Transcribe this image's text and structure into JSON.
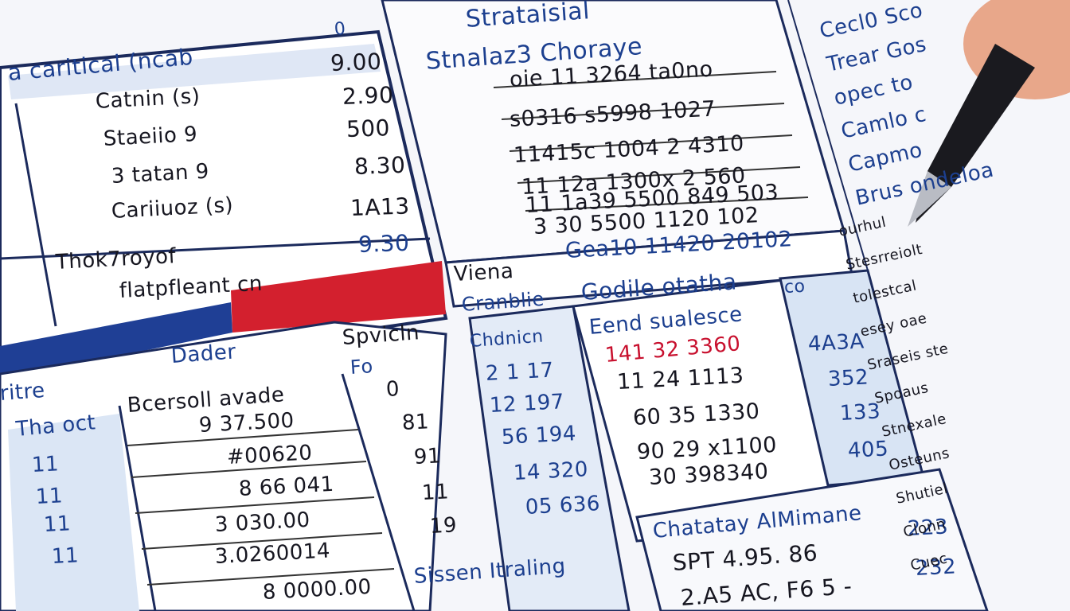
{
  "top_left": {
    "title": "a caritical (ncab",
    "note": "0",
    "labels": [
      "Catnin (s)",
      "Staeiio 9",
      "3 tatan 9",
      "Cariiuoz (s)",
      "Thok7royof",
      "flatpfleant cn"
    ],
    "values": [
      "9.00",
      "2.90",
      "500",
      "8.30",
      "1A13",
      "9.30"
    ]
  },
  "top_center": {
    "heading": "Strataisial",
    "title": "Stnalaz3 Choraye",
    "rows": [
      "oie 11 3264 ta0no",
      "s0316 s5998 1027",
      "11415c 1004 2 4310",
      "11 12a 1300x 2 560",
      "11 1a39 5500 849 503",
      "3 30 5500 1120 102"
    ],
    "footer": "Gea10 11420 20102"
  },
  "middle": {
    "label_a": "Viena",
    "label_b": "Godile otatha",
    "label_c": "co"
  },
  "bottom_left": {
    "heading": "Dader",
    "side": "ritre",
    "sub": "Tha oct",
    "index": [
      "11",
      "11",
      "11",
      "11"
    ],
    "column_title": "Bcersoll avade",
    "values": [
      "9 37.500",
      "#00620",
      "8 66 041",
      "3 030.00",
      "3.0260014",
      "8 0000.00"
    ]
  },
  "bottom_mid": {
    "heading": "Spvicln",
    "sub": "Fo",
    "values": [
      "0",
      "81",
      "91",
      "11",
      "19"
    ]
  },
  "bottom_blue": {
    "heading": "Cranblie",
    "sub": "Chdnicn",
    "values": [
      "2 1 17",
      "12 197",
      "56 194",
      "14 320",
      "05 636"
    ]
  },
  "bottom_right": {
    "heading": "Eend sualesce",
    "red": "141 32 3360",
    "values": [
      "11 24 1113",
      "60 35 1330",
      "90 29 x1100",
      "30 398340"
    ],
    "totals_title": "Chatatay AlMimane",
    "totals": [
      "SPT 4.95. 86",
      "2.A5 AC, F6 5 -"
    ],
    "footer": "Sissen Itraling"
  },
  "far_right": {
    "values": [
      "4A3A",
      "352",
      "133",
      "405",
      "223",
      "232"
    ]
  },
  "margin_notes": [
    "Cecl0 Sco",
    "Trear Gos",
    "opec to",
    "Camlo c",
    "Capmo",
    "Brus ondeloa",
    "ourhul",
    "Stesrreiolt",
    "tolestcal",
    "esey oae",
    "Sraseis ste",
    "Spoaus",
    "Stnexale",
    "Osteuns",
    "Shutiel",
    "Clonn",
    "Cuec"
  ]
}
